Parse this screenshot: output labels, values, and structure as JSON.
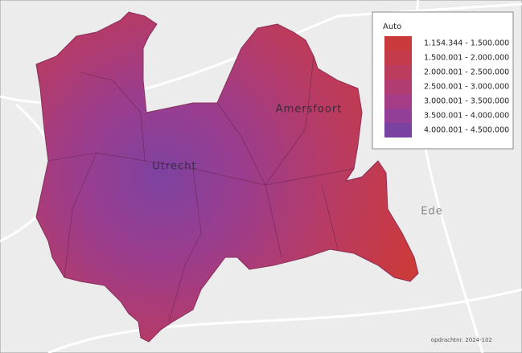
{
  "legend": {
    "title": "Auto",
    "items": [
      {
        "label": "1.154.344 - 1.500.000",
        "color": "#c93a3c"
      },
      {
        "label": "1.500.001 - 2.000.000",
        "color": "#c43b4b"
      },
      {
        "label": "2.000.001 - 2.500.000",
        "color": "#bc3c5d"
      },
      {
        "label": "2.500.001 - 3.000.000",
        "color": "#b13c72"
      },
      {
        "label": "3.000.001 - 3.500.000",
        "color": "#a43c87"
      },
      {
        "label": "3.500.001 - 4.000.000",
        "color": "#933f97"
      },
      {
        "label": "4.000.001 - 4.500.000",
        "color": "#7a42a0"
      }
    ]
  },
  "places": {
    "utrecht": "Utrecht",
    "amersfoort": "Amersfoort",
    "ede": "Ede"
  },
  "footer": "opdrachtnr. 2024-102"
}
